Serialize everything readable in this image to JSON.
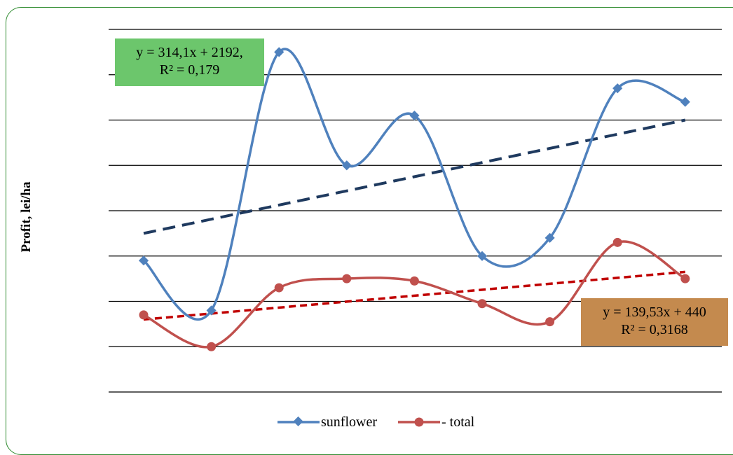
{
  "chart_data": {
    "type": "line",
    "title": "",
    "xlabel": "",
    "ylabel": "Profit, lei/ha",
    "ylim": [
      0,
      8
    ],
    "grid": true,
    "legend_position": "bottom",
    "x": [
      1,
      2,
      3,
      4,
      5,
      6,
      7,
      8,
      9
    ],
    "series": [
      {
        "name": "sunflower",
        "color": "#4f81bd",
        "marker": "diamond",
        "values": [
          2.9,
          1.8,
          7.5,
          5.0,
          6.1,
          3.0,
          3.4,
          6.7,
          6.4
        ]
      },
      {
        "name": "- total",
        "color": "#c0504d",
        "marker": "circle",
        "values": [
          1.7,
          1.0,
          2.3,
          2.5,
          2.45,
          1.95,
          1.55,
          3.3,
          2.5
        ]
      }
    ],
    "trendlines": [
      {
        "series": "sunflower",
        "color": "#1f3a5f",
        "style": "dashed",
        "start": [
          1,
          3.5
        ],
        "end": [
          9,
          6.0
        ],
        "equation": "y = 314,1x + 2192,",
        "r2": "R² = 0,179",
        "label_color": "#6cc66c"
      },
      {
        "series": "- total",
        "color": "#c00000",
        "style": "dashed",
        "start": [
          1,
          1.6
        ],
        "end": [
          9,
          2.65
        ],
        "equation": "y = 139,53x + 440",
        "r2": "R² = 0,3168",
        "label_color": "#c48a4e"
      }
    ]
  }
}
